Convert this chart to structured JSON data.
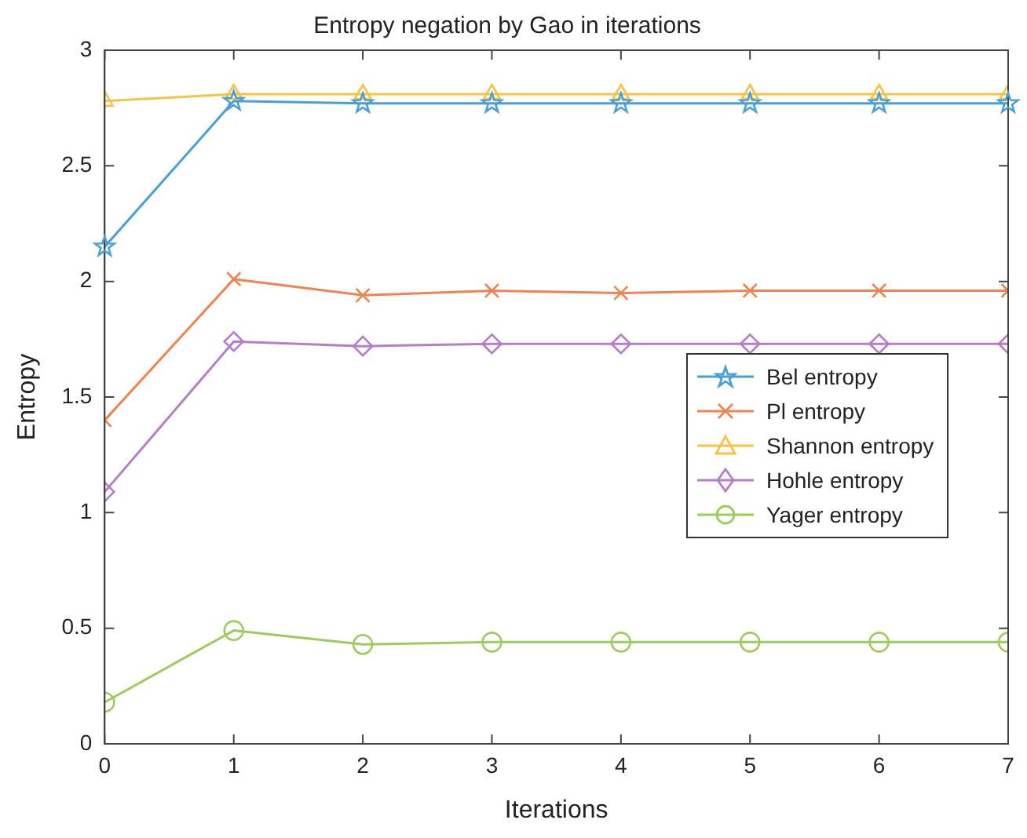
{
  "chart_data": {
    "type": "line",
    "title": "Entropy negation by Gao in iterations",
    "xlabel": "Iterations",
    "ylabel": "Entropy",
    "x": [
      0,
      1,
      2,
      3,
      4,
      5,
      6,
      7
    ],
    "xlim": [
      0,
      7
    ],
    "xticks": [
      0,
      1,
      2,
      3,
      4,
      5,
      6,
      7
    ],
    "ylim": [
      0,
      3
    ],
    "yticks": [
      0,
      0.5,
      1,
      1.5,
      2,
      2.5,
      3
    ],
    "grid": false,
    "legend": "right",
    "series": [
      {
        "name": "Bel entropy",
        "color": "#4a9fd8",
        "marker": "star",
        "values": [
          2.15,
          2.78,
          2.77,
          2.77,
          2.77,
          2.77,
          2.77,
          2.77
        ]
      },
      {
        "name": "Pl entropy",
        "color": "#ef8450",
        "marker": "cross",
        "values": [
          1.4,
          2.01,
          1.94,
          1.96,
          1.95,
          1.96,
          1.96,
          1.96
        ]
      },
      {
        "name": "Shannon entropy",
        "color": "#f5c445",
        "marker": "triangle",
        "values": [
          2.78,
          2.81,
          2.81,
          2.81,
          2.81,
          2.81,
          2.81,
          2.81
        ]
      },
      {
        "name": "Hohle entropy",
        "color": "#b67dc8",
        "marker": "diamond",
        "values": [
          1.09,
          1.74,
          1.72,
          1.73,
          1.73,
          1.73,
          1.73,
          1.73
        ]
      },
      {
        "name": "Yager entropy",
        "color": "#9ccc5c",
        "marker": "circle",
        "values": [
          0.18,
          0.49,
          0.43,
          0.44,
          0.44,
          0.44,
          0.44,
          0.44
        ]
      }
    ]
  }
}
